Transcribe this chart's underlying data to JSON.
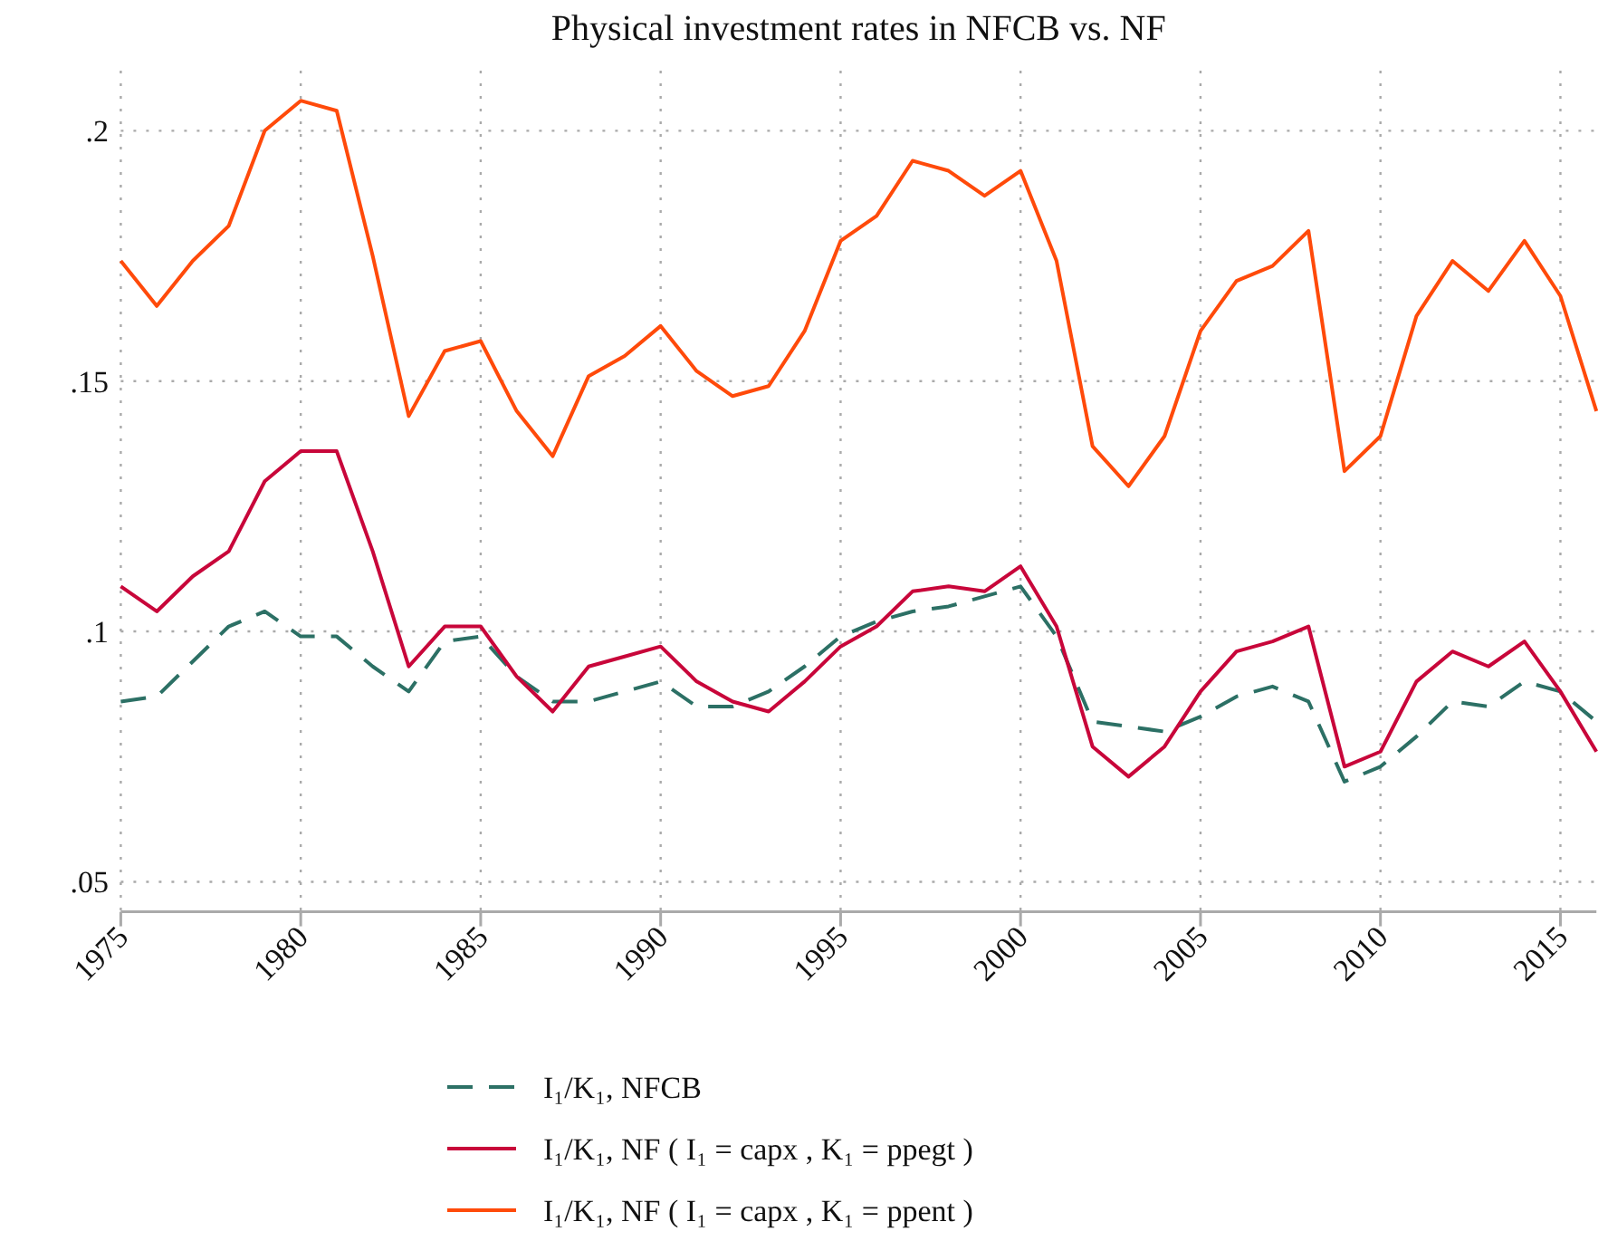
{
  "chart_data": {
    "type": "line",
    "title": "Physical investment rates in NFCB vs. NF",
    "x": [
      1975,
      1976,
      1977,
      1978,
      1979,
      1980,
      1981,
      1982,
      1983,
      1984,
      1985,
      1986,
      1987,
      1988,
      1989,
      1990,
      1991,
      1992,
      1993,
      1994,
      1995,
      1996,
      1997,
      1998,
      1999,
      2000,
      2001,
      2002,
      2003,
      2004,
      2005,
      2006,
      2007,
      2008,
      2009,
      2010,
      2011,
      2012,
      2013,
      2014,
      2015,
      2016
    ],
    "series": [
      {
        "name": "I₁/K₁, NFCB",
        "color": "#2c7065",
        "line_style": "dashed",
        "values": [
          0.086,
          0.087,
          0.094,
          0.101,
          0.104,
          0.099,
          0.099,
          0.093,
          0.088,
          0.098,
          0.099,
          0.091,
          0.086,
          0.086,
          0.088,
          0.09,
          0.085,
          0.085,
          0.088,
          0.093,
          0.099,
          0.102,
          0.104,
          0.105,
          0.107,
          0.109,
          0.099,
          0.082,
          0.081,
          0.08,
          0.083,
          0.087,
          0.089,
          0.086,
          0.07,
          0.073,
          0.079,
          0.086,
          0.085,
          0.09,
          0.088,
          0.082
        ]
      },
      {
        "name": "I₁/K₁, NF ( I₁ = capx , K₁ = ppegt )",
        "color": "#c8063a",
        "line_style": "solid",
        "values": [
          0.109,
          0.104,
          0.111,
          0.116,
          0.13,
          0.136,
          0.136,
          0.116,
          0.093,
          0.101,
          0.101,
          0.091,
          0.084,
          0.093,
          0.095,
          0.097,
          0.09,
          0.086,
          0.084,
          0.09,
          0.097,
          0.101,
          0.108,
          0.109,
          0.108,
          0.113,
          0.101,
          0.077,
          0.071,
          0.077,
          0.088,
          0.096,
          0.098,
          0.101,
          0.073,
          0.076,
          0.09,
          0.096,
          0.093,
          0.098,
          0.088,
          0.076
        ]
      },
      {
        "name": "I₁/K₁, NF ( I₁ = capx , K₁ = ppent )",
        "color": "#ff4a0a",
        "line_style": "solid",
        "values": [
          0.174,
          0.165,
          0.174,
          0.181,
          0.2,
          0.206,
          0.204,
          0.175,
          0.143,
          0.156,
          0.158,
          0.144,
          0.135,
          0.151,
          0.155,
          0.161,
          0.152,
          0.147,
          0.149,
          0.16,
          0.178,
          0.183,
          0.194,
          0.192,
          0.187,
          0.192,
          0.174,
          0.137,
          0.129,
          0.139,
          0.16,
          0.17,
          0.173,
          0.18,
          0.132,
          0.139,
          0.163,
          0.174,
          0.168,
          0.178,
          0.167,
          0.144
        ]
      }
    ],
    "xlim": [
      1975,
      2016
    ],
    "xticks": [
      1975,
      1980,
      1985,
      1990,
      1995,
      2000,
      2005,
      2010,
      2015
    ],
    "ylim": [
      0.044,
      0.212
    ],
    "yticks": [
      {
        "value": 0.05,
        "label": ".05"
      },
      {
        "value": 0.1,
        "label": ".1"
      },
      {
        "value": 0.15,
        "label": ".15"
      },
      {
        "value": 0.2,
        "label": ".2"
      }
    ],
    "grid": true,
    "legend": "bottom"
  }
}
